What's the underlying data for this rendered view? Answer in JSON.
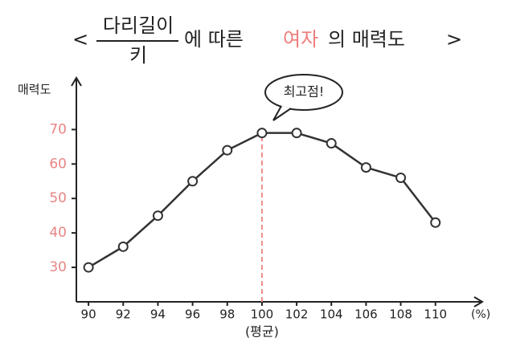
{
  "chart_data": {
    "type": "line",
    "title": {
      "open": "<",
      "numerator": "다리길이",
      "denominator": "키",
      "part1": "에 따른",
      "highlight": "여자",
      "part2": "의 매력도",
      "close": ">"
    },
    "ylabel": "매력도",
    "x_unit": "(%)",
    "average_label": "(평균)",
    "annotation": "최고점!",
    "peak_x": 100,
    "x": [
      90,
      92,
      94,
      96,
      98,
      100,
      102,
      104,
      106,
      108,
      110
    ],
    "series": [
      {
        "values": [
          30,
          36,
          45,
          55,
          64,
          69,
          69,
          66,
          59,
          56,
          43
        ],
        "color": "#333333"
      }
    ],
    "xlim": [
      89.3,
      112.7
    ],
    "ylim": [
      20,
      85
    ],
    "xticks": [
      90,
      92,
      94,
      96,
      98,
      100,
      102,
      104,
      106,
      108,
      110
    ],
    "yticks": [
      30,
      40,
      50,
      60,
      70
    ],
    "ytick_color": "#e88585",
    "highlight_color": "#ee7d7d",
    "peak_line_color": "#ee8b8b"
  }
}
